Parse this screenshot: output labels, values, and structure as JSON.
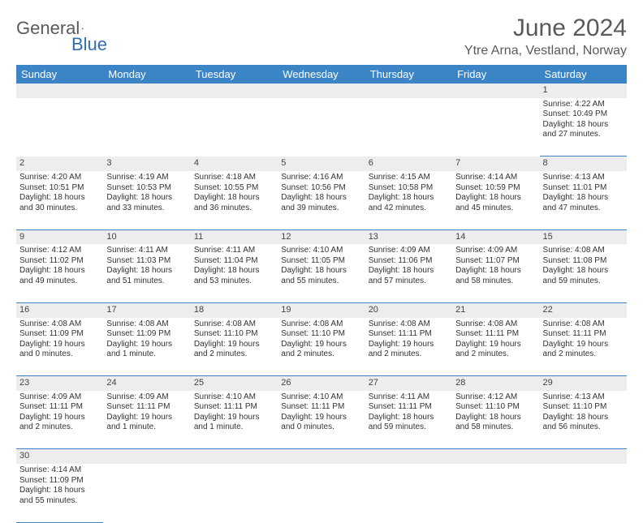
{
  "logo": {
    "text1": "General",
    "text2": "Blue"
  },
  "title": "June 2024",
  "location": "Ytre Arna, Vestland, Norway",
  "colors": {
    "header_bg": "#3b85c6",
    "header_text": "#ffffff",
    "daynum_bg": "#ededed",
    "border": "#3b85c6",
    "title_color": "#5a5a5a",
    "logo_gray": "#5a5a5a",
    "logo_blue": "#2f6fb0"
  },
  "weekdays": [
    "Sunday",
    "Monday",
    "Tuesday",
    "Wednesday",
    "Thursday",
    "Friday",
    "Saturday"
  ],
  "weeks": [
    [
      null,
      null,
      null,
      null,
      null,
      null,
      {
        "n": "1",
        "sunrise": "4:22 AM",
        "sunset": "10:49 PM",
        "daylight": "18 hours and 27 minutes."
      }
    ],
    [
      {
        "n": "2",
        "sunrise": "4:20 AM",
        "sunset": "10:51 PM",
        "daylight": "18 hours and 30 minutes."
      },
      {
        "n": "3",
        "sunrise": "4:19 AM",
        "sunset": "10:53 PM",
        "daylight": "18 hours and 33 minutes."
      },
      {
        "n": "4",
        "sunrise": "4:18 AM",
        "sunset": "10:55 PM",
        "daylight": "18 hours and 36 minutes."
      },
      {
        "n": "5",
        "sunrise": "4:16 AM",
        "sunset": "10:56 PM",
        "daylight": "18 hours and 39 minutes."
      },
      {
        "n": "6",
        "sunrise": "4:15 AM",
        "sunset": "10:58 PM",
        "daylight": "18 hours and 42 minutes."
      },
      {
        "n": "7",
        "sunrise": "4:14 AM",
        "sunset": "10:59 PM",
        "daylight": "18 hours and 45 minutes."
      },
      {
        "n": "8",
        "sunrise": "4:13 AM",
        "sunset": "11:01 PM",
        "daylight": "18 hours and 47 minutes."
      }
    ],
    [
      {
        "n": "9",
        "sunrise": "4:12 AM",
        "sunset": "11:02 PM",
        "daylight": "18 hours and 49 minutes."
      },
      {
        "n": "10",
        "sunrise": "4:11 AM",
        "sunset": "11:03 PM",
        "daylight": "18 hours and 51 minutes."
      },
      {
        "n": "11",
        "sunrise": "4:11 AM",
        "sunset": "11:04 PM",
        "daylight": "18 hours and 53 minutes."
      },
      {
        "n": "12",
        "sunrise": "4:10 AM",
        "sunset": "11:05 PM",
        "daylight": "18 hours and 55 minutes."
      },
      {
        "n": "13",
        "sunrise": "4:09 AM",
        "sunset": "11:06 PM",
        "daylight": "18 hours and 57 minutes."
      },
      {
        "n": "14",
        "sunrise": "4:09 AM",
        "sunset": "11:07 PM",
        "daylight": "18 hours and 58 minutes."
      },
      {
        "n": "15",
        "sunrise": "4:08 AM",
        "sunset": "11:08 PM",
        "daylight": "18 hours and 59 minutes."
      }
    ],
    [
      {
        "n": "16",
        "sunrise": "4:08 AM",
        "sunset": "11:09 PM",
        "daylight": "19 hours and 0 minutes."
      },
      {
        "n": "17",
        "sunrise": "4:08 AM",
        "sunset": "11:09 PM",
        "daylight": "19 hours and 1 minute."
      },
      {
        "n": "18",
        "sunrise": "4:08 AM",
        "sunset": "11:10 PM",
        "daylight": "19 hours and 2 minutes."
      },
      {
        "n": "19",
        "sunrise": "4:08 AM",
        "sunset": "11:10 PM",
        "daylight": "19 hours and 2 minutes."
      },
      {
        "n": "20",
        "sunrise": "4:08 AM",
        "sunset": "11:11 PM",
        "daylight": "19 hours and 2 minutes."
      },
      {
        "n": "21",
        "sunrise": "4:08 AM",
        "sunset": "11:11 PM",
        "daylight": "19 hours and 2 minutes."
      },
      {
        "n": "22",
        "sunrise": "4:08 AM",
        "sunset": "11:11 PM",
        "daylight": "19 hours and 2 minutes."
      }
    ],
    [
      {
        "n": "23",
        "sunrise": "4:09 AM",
        "sunset": "11:11 PM",
        "daylight": "19 hours and 2 minutes."
      },
      {
        "n": "24",
        "sunrise": "4:09 AM",
        "sunset": "11:11 PM",
        "daylight": "19 hours and 1 minute."
      },
      {
        "n": "25",
        "sunrise": "4:10 AM",
        "sunset": "11:11 PM",
        "daylight": "19 hours and 1 minute."
      },
      {
        "n": "26",
        "sunrise": "4:10 AM",
        "sunset": "11:11 PM",
        "daylight": "19 hours and 0 minutes."
      },
      {
        "n": "27",
        "sunrise": "4:11 AM",
        "sunset": "11:11 PM",
        "daylight": "18 hours and 59 minutes."
      },
      {
        "n": "28",
        "sunrise": "4:12 AM",
        "sunset": "11:10 PM",
        "daylight": "18 hours and 58 minutes."
      },
      {
        "n": "29",
        "sunrise": "4:13 AM",
        "sunset": "11:10 PM",
        "daylight": "18 hours and 56 minutes."
      }
    ],
    [
      {
        "n": "30",
        "sunrise": "4:14 AM",
        "sunset": "11:09 PM",
        "daylight": "18 hours and 55 minutes."
      },
      null,
      null,
      null,
      null,
      null,
      null
    ]
  ],
  "labels": {
    "sunrise": "Sunrise:",
    "sunset": "Sunset:",
    "daylight": "Daylight:"
  }
}
